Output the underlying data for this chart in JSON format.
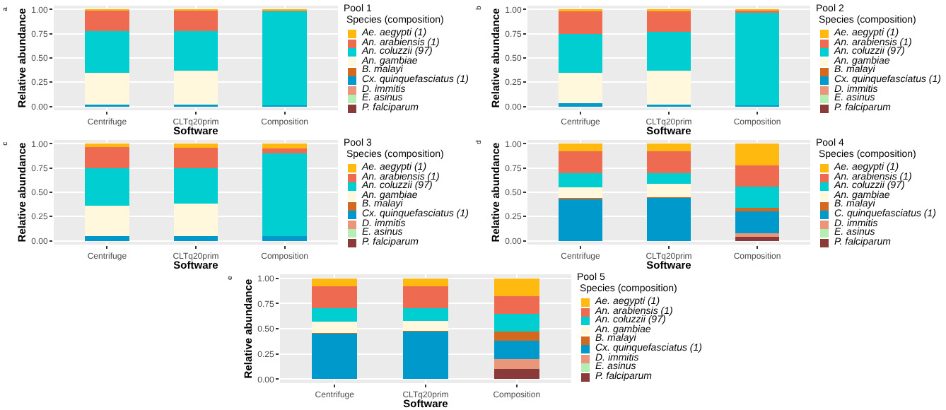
{
  "chart_data": [
    {
      "type": "bar",
      "stacked": true,
      "legend_title": "Pool 1\nSpecies (composition)",
      "xlabel": "Software",
      "ylabel": "Relative abundance",
      "annotations": [
        "a"
      ],
      "categories": [
        "Centrifuge",
        "CLTq20prim",
        "Composition"
      ],
      "ylim": [
        -0.04,
        1.04
      ],
      "yticks": [
        {
          "value": 0,
          "label": "0.00"
        },
        {
          "value": 0.25,
          "label": "0.25"
        },
        {
          "value": 0.5,
          "label": "0.50"
        },
        {
          "value": 0.75,
          "label": "0.75"
        },
        {
          "value": 1,
          "label": "1.00"
        }
      ],
      "grid": true,
      "legend": "right",
      "series": [
        {
          "name": "P. falciparum",
          "color": "#8b3a3a",
          "values": [
            0,
            0,
            0
          ]
        },
        {
          "name": "E. asinus",
          "color": "#b4eeb4",
          "values": [
            0,
            0,
            0
          ]
        },
        {
          "name": "D. immitis",
          "color": "#e9967a",
          "values": [
            0,
            0,
            0
          ]
        },
        {
          "name": "Cx. quinquefasciatus (1)",
          "color": "#0099cc",
          "values": [
            0.02,
            0.02,
            0.01
          ]
        },
        {
          "name": "B. malayi",
          "color": "#d2691e",
          "values": [
            0,
            0,
            0
          ]
        },
        {
          "name": "An. gambiae",
          "color": "#fff8dc",
          "values": [
            0.33,
            0.35,
            0
          ]
        },
        {
          "name": "An. coluzzii (97)",
          "color": "#00ced1",
          "values": [
            0.43,
            0.41,
            0.97
          ]
        },
        {
          "name": "An. arabiensis (1)",
          "color": "#ee6a50",
          "values": [
            0.21,
            0.21,
            0.01
          ]
        },
        {
          "name": "Ae. aegypti (1)",
          "color": "#ffb90f",
          "values": [
            0.01,
            0.01,
            0.01
          ]
        }
      ]
    },
    {
      "type": "bar",
      "stacked": true,
      "legend_title": "Pool 2\nSpecies (composition)",
      "xlabel": "Software",
      "ylabel": "Relative abundance",
      "annotations": [
        "b"
      ],
      "categories": [
        "Centrifuge",
        "CLTq20prim",
        "Composition"
      ],
      "ylim": [
        -0.04,
        1.04
      ],
      "yticks": [
        {
          "value": 0,
          "label": "0.00"
        },
        {
          "value": 0.25,
          "label": "0.25"
        },
        {
          "value": 0.5,
          "label": "0.50"
        },
        {
          "value": 0.75,
          "label": "0.75"
        },
        {
          "value": 1,
          "label": "1.00"
        }
      ],
      "grid": true,
      "legend": "right",
      "series": [
        {
          "name": "P. falciparum",
          "color": "#8b3a3a",
          "values": [
            0,
            0,
            0
          ]
        },
        {
          "name": "E. asinus",
          "color": "#b4eeb4",
          "values": [
            0,
            0,
            0
          ]
        },
        {
          "name": "D. immitis",
          "color": "#e9967a",
          "values": [
            0,
            0,
            0
          ]
        },
        {
          "name": "Cx. quinquefasciatus (1)",
          "color": "#0099cc",
          "values": [
            0.03,
            0.02,
            0.01
          ]
        },
        {
          "name": "B. malayi",
          "color": "#d2691e",
          "values": [
            0,
            0,
            0
          ]
        },
        {
          "name": "An. gambiae",
          "color": "#fff8dc",
          "values": [
            0.32,
            0.35,
            0
          ]
        },
        {
          "name": "An. coluzzii (97)",
          "color": "#00ced1",
          "values": [
            0.4,
            0.4,
            0.96
          ]
        },
        {
          "name": "An. arabiensis (1)",
          "color": "#ee6a50",
          "values": [
            0.23,
            0.21,
            0.02
          ]
        },
        {
          "name": "Ae. aegypti (1)",
          "color": "#ffb90f",
          "values": [
            0.02,
            0.02,
            0.01
          ]
        }
      ]
    },
    {
      "type": "bar",
      "stacked": true,
      "legend_title": "Pool 3\nSpecies (composition)",
      "xlabel": "Software",
      "ylabel": "Relative abundance",
      "annotations": [
        "c"
      ],
      "categories": [
        "Centrifuge",
        "CLTq20prim",
        "Composition"
      ],
      "ylim": [
        -0.04,
        1.04
      ],
      "yticks": [
        {
          "value": 0,
          "label": "0.00"
        },
        {
          "value": 0.25,
          "label": "0.25"
        },
        {
          "value": 0.5,
          "label": "0.50"
        },
        {
          "value": 0.75,
          "label": "0.75"
        },
        {
          "value": 1,
          "label": "1.00"
        }
      ],
      "grid": true,
      "legend": "right",
      "series": [
        {
          "name": "P. falciparum",
          "color": "#8b3a3a",
          "values": [
            0,
            0,
            0
          ]
        },
        {
          "name": "E. asinus",
          "color": "#b4eeb4",
          "values": [
            0,
            0,
            0
          ]
        },
        {
          "name": "D. immitis",
          "color": "#e9967a",
          "values": [
            0,
            0,
            0
          ]
        },
        {
          "name": "Cx. quinquefasciatus (1)",
          "color": "#0099cc",
          "values": [
            0.05,
            0.05,
            0.05
          ]
        },
        {
          "name": "B. malayi",
          "color": "#d2691e",
          "values": [
            0,
            0,
            0
          ]
        },
        {
          "name": "An. gambiae",
          "color": "#fff8dc",
          "values": [
            0.31,
            0.33,
            0
          ]
        },
        {
          "name": "An. coluzzii (97)",
          "color": "#00ced1",
          "values": [
            0.39,
            0.37,
            0.85
          ]
        },
        {
          "name": "An. arabiensis (1)",
          "color": "#ee6a50",
          "values": [
            0.22,
            0.21,
            0.05
          ]
        },
        {
          "name": "Ae. aegypti (1)",
          "color": "#ffb90f",
          "values": [
            0.03,
            0.04,
            0.05
          ]
        }
      ]
    },
    {
      "type": "bar",
      "stacked": true,
      "legend_title": "Pool 4\nSpecies (composition)",
      "xlabel": "Software",
      "ylabel": "Relative abundance",
      "annotations": [
        "d"
      ],
      "categories": [
        "Centrifuge",
        "CLTq20prim",
        "Composition"
      ],
      "ylim": [
        -0.04,
        1.04
      ],
      "yticks": [
        {
          "value": 0,
          "label": "0.00"
        },
        {
          "value": 0.25,
          "label": "0.25"
        },
        {
          "value": 0.5,
          "label": "0.50"
        },
        {
          "value": 0.75,
          "label": "0.75"
        },
        {
          "value": 1,
          "label": "1.00"
        }
      ],
      "grid": true,
      "legend": "right",
      "series": [
        {
          "name": "P. falciparum",
          "color": "#8b3a3a",
          "values": [
            0,
            0,
            0.04
          ]
        },
        {
          "name": "E. asinus",
          "color": "#b4eeb4",
          "values": [
            0,
            0,
            0
          ]
        },
        {
          "name": "D. immitis",
          "color": "#e9967a",
          "values": [
            0,
            0,
            0.04
          ]
        },
        {
          "name": "C. quinquefasciatus (1)",
          "color": "#0099cc",
          "values": [
            0.43,
            0.44,
            0.22
          ]
        },
        {
          "name": "B. malayi",
          "color": "#d2691e",
          "values": [
            0.01,
            0.01,
            0.04
          ]
        },
        {
          "name": "An. gambiae",
          "color": "#fff8dc",
          "values": [
            0.11,
            0.14,
            0
          ]
        },
        {
          "name": "An. coluzzii (97)",
          "color": "#00ced1",
          "values": [
            0.15,
            0.11,
            0.22
          ]
        },
        {
          "name": "An. arabiensis (1)",
          "color": "#ee6a50",
          "values": [
            0.22,
            0.22,
            0.22
          ]
        },
        {
          "name": "Ae. aegypti (1)",
          "color": "#ffb90f",
          "values": [
            0.08,
            0.08,
            0.22
          ]
        }
      ]
    },
    {
      "type": "bar",
      "stacked": true,
      "legend_title": "Pool 5\nSpecies (composition)",
      "xlabel": "Software",
      "ylabel": "Relative abundance",
      "annotations": [
        "e"
      ],
      "categories": [
        "Centrifuge",
        "CLTq20prim",
        "Composition"
      ],
      "ylim": [
        -0.04,
        1.04
      ],
      "yticks": [
        {
          "value": 0,
          "label": "0.00"
        },
        {
          "value": 0.25,
          "label": "0.25"
        },
        {
          "value": 0.5,
          "label": "0.50"
        },
        {
          "value": 0.75,
          "label": "0.75"
        },
        {
          "value": 1,
          "label": "1.00"
        }
      ],
      "grid": true,
      "legend": "right",
      "series": [
        {
          "name": "P. falciparum",
          "color": "#8b3a3a",
          "values": [
            0,
            0,
            0.1
          ]
        },
        {
          "name": "E. asinus",
          "color": "#b4eeb4",
          "values": [
            0,
            0,
            0
          ]
        },
        {
          "name": "D. immitis",
          "color": "#e9967a",
          "values": [
            0,
            0,
            0.1
          ]
        },
        {
          "name": "Cx. quinquefasciatus (1)",
          "color": "#0099cc",
          "values": [
            0.45,
            0.47,
            0.18
          ]
        },
        {
          "name": "B. malayi",
          "color": "#d2691e",
          "values": [
            0.01,
            0.01,
            0.09
          ]
        },
        {
          "name": "An. gambiae",
          "color": "#fff8dc",
          "values": [
            0.11,
            0.1,
            0
          ]
        },
        {
          "name": "An. coluzzii (97)",
          "color": "#00ced1",
          "values": [
            0.13,
            0.12,
            0.18
          ]
        },
        {
          "name": "An. arabiensis (1)",
          "color": "#ee6a50",
          "values": [
            0.22,
            0.22,
            0.17
          ]
        },
        {
          "name": "Ae. aegypti (1)",
          "color": "#ffb90f",
          "values": [
            0.08,
            0.08,
            0.18
          ]
        }
      ]
    }
  ]
}
